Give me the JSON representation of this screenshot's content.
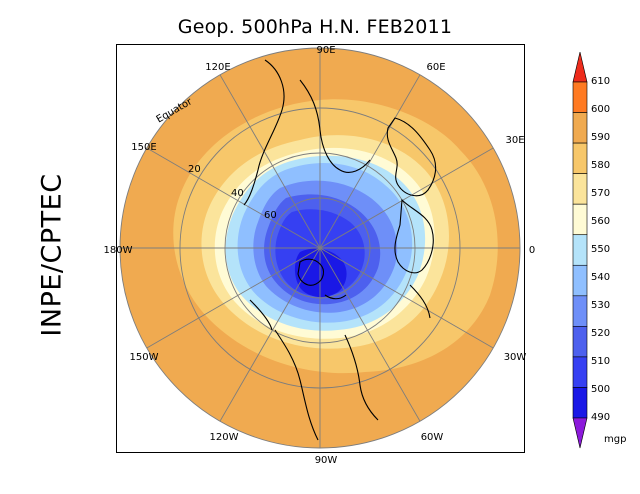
{
  "title": "Geop. 500hPa H.N. FEB2011",
  "institution": "INPE/CPTEC",
  "map": {
    "projection": "north-polar-stereographic",
    "longitude_labels": [
      "90E",
      "60E",
      "30E",
      "0",
      "30W",
      "60W",
      "90W",
      "120W",
      "150W",
      "180W",
      "150E",
      "120E"
    ],
    "latitude_labels": [
      "Equator",
      "20",
      "40",
      "60"
    ],
    "colors": {
      "ocean_ring": "#f0aa50",
      "grid": "#7d7d7d",
      "coast": "#000000"
    }
  },
  "colorbar": {
    "levels": [
      "610",
      "600",
      "590",
      "580",
      "570",
      "560",
      "550",
      "540",
      "530",
      "520",
      "510",
      "500",
      "490"
    ],
    "unit": "mgp",
    "colors": [
      "#ee2c1c",
      "#ff7a22",
      "#f0aa50",
      "#f7c76a",
      "#fbe49b",
      "#fffbd5",
      "#b4e3fa",
      "#8fbfff",
      "#6e8ff8",
      "#4d60ee",
      "#3640f2",
      "#1a18e6",
      "#8c1adb"
    ]
  }
}
